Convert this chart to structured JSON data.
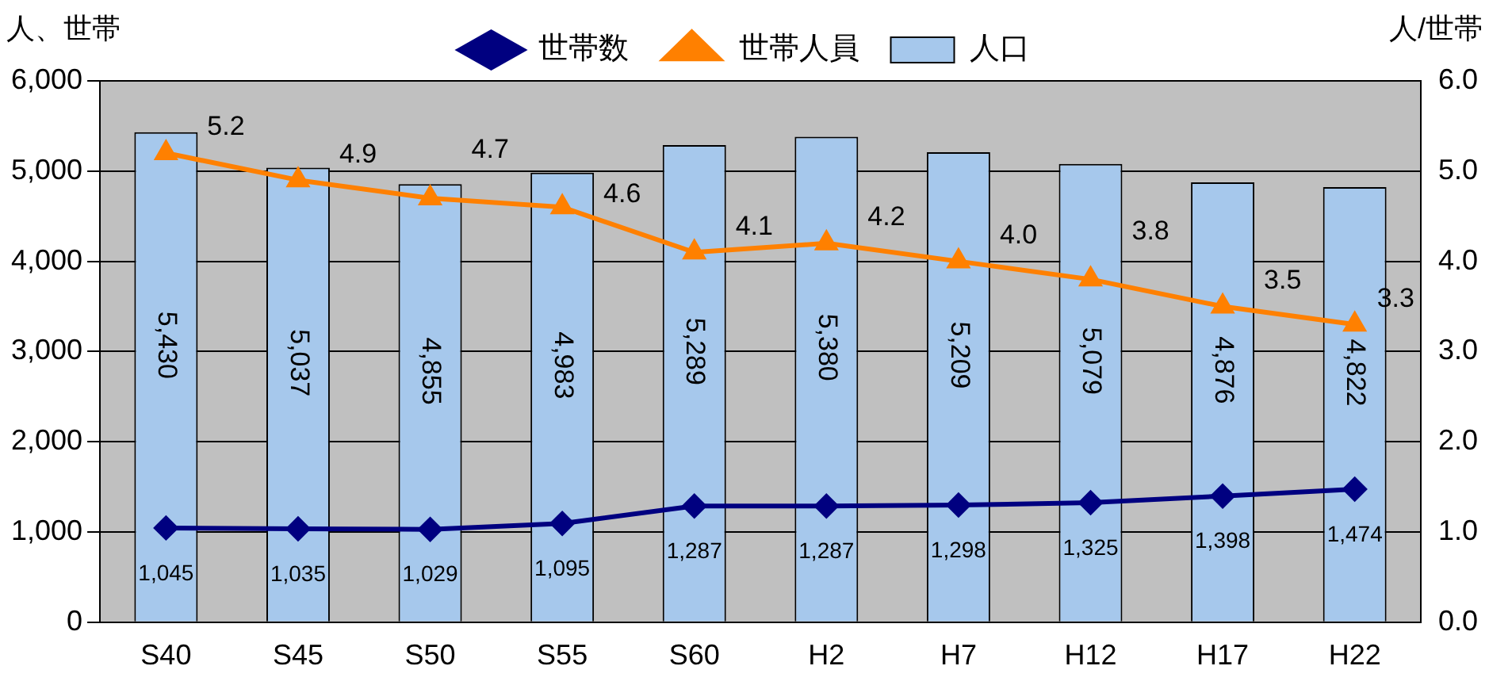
{
  "chart_data": {
    "type": "bar",
    "ylabel": "人、世帯",
    "y2label": "人/世帯",
    "categories": [
      "S40",
      "S45",
      "S50",
      "S55",
      "S60",
      "H2",
      "H7",
      "H12",
      "H17",
      "H22"
    ],
    "series": [
      {
        "name": "人口",
        "type": "bar",
        "color": "#a6c8ec",
        "values": [
          5430,
          5037,
          4855,
          4983,
          5289,
          5380,
          5209,
          5079,
          4876,
          4822
        ],
        "value_labels": [
          "5,430",
          "5,037",
          "4,855",
          "4,983",
          "5,289",
          "5,380",
          "5,209",
          "5,079",
          "4,876",
          "4,822"
        ]
      },
      {
        "name": "世帯数",
        "type": "line",
        "color": "#000080",
        "marker": "diamond",
        "values": [
          1045,
          1035,
          1029,
          1095,
          1287,
          1287,
          1298,
          1325,
          1398,
          1474
        ],
        "value_labels": [
          "1,045",
          "1,035",
          "1,029",
          "1,095",
          "1,287",
          "1,287",
          "1,298",
          "1,325",
          "1,398",
          "1,474"
        ]
      },
      {
        "name": "世帯人員",
        "type": "line",
        "axis": "y2",
        "color": "#ff8000",
        "marker": "triangle",
        "values": [
          5.2,
          4.9,
          4.7,
          4.6,
          4.1,
          4.2,
          4.0,
          3.8,
          3.5,
          3.3
        ],
        "value_labels": [
          "5.2",
          "4.9",
          "4.7",
          "4.6",
          "4.1",
          "4.2",
          "4.0",
          "3.8",
          "3.5",
          "3.3"
        ]
      }
    ],
    "ylim": [
      0,
      6000
    ],
    "yticks": [
      0,
      {
        "value": 1000,
        "label": "1,000"
      },
      {
        "value": 2000,
        "label": "2,000"
      },
      {
        "value": 3000,
        "label": "3,000"
      },
      {
        "value": 4000,
        "label": "4,000"
      },
      {
        "value": 5000,
        "label": "5,000"
      },
      {
        "value": 6000,
        "label": "6,000"
      }
    ],
    "y2lim": [
      0,
      6
    ],
    "y2ticks": [
      {
        "value": 0,
        "label": "0.0"
      },
      {
        "value": 1,
        "label": "1.0"
      },
      {
        "value": 2,
        "label": "2.0"
      },
      {
        "value": 3,
        "label": "3.0"
      },
      {
        "value": 4,
        "label": "4.0"
      },
      {
        "value": 5,
        "label": "5.0"
      },
      {
        "value": 6,
        "label": "6.0"
      }
    ],
    "grid": "y",
    "legend": "top"
  }
}
